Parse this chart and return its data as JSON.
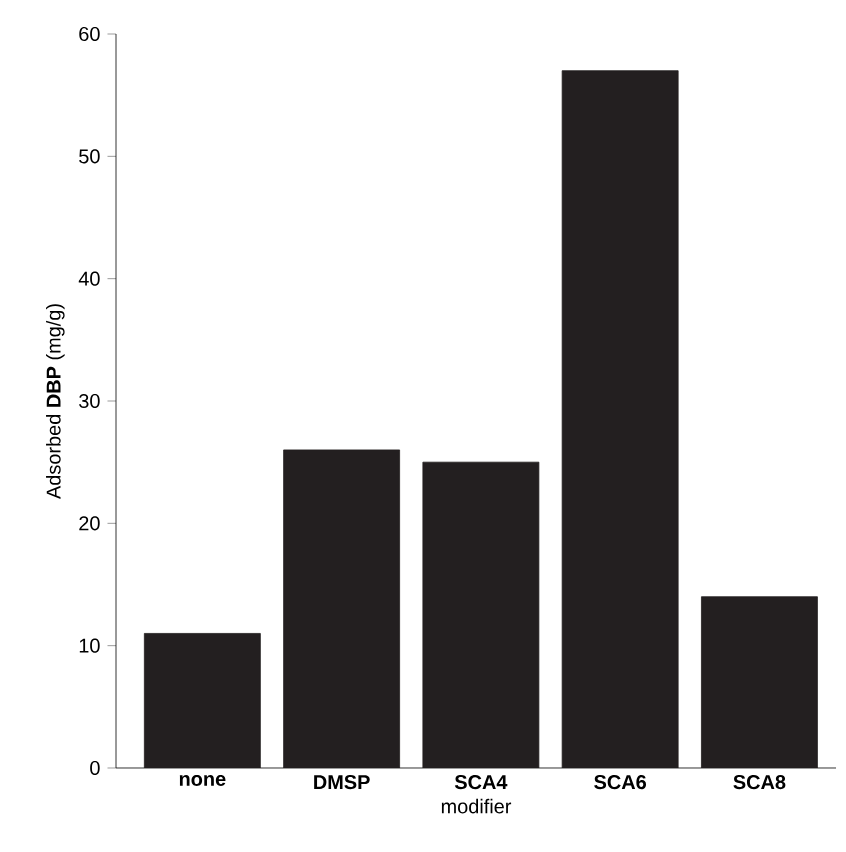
{
  "chart_data": {
    "type": "bar",
    "xlabel": "modifier",
    "ylabel": "Adsorbed **DBP** (mg/g)",
    "categories": [
      "none",
      "DMSP",
      "SCA4",
      "SCA6",
      "SCA8"
    ],
    "values": [
      11,
      26,
      25,
      57,
      14
    ],
    "color": "#231f20",
    "ylim": [
      0,
      60
    ],
    "yticks": [
      0,
      10,
      20,
      30,
      40,
      50,
      60
    ],
    "grid": false
  }
}
